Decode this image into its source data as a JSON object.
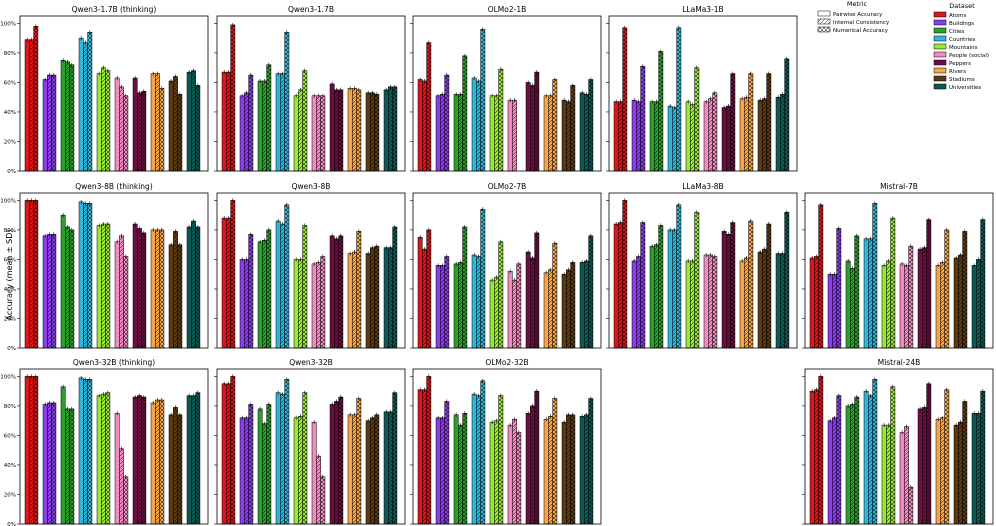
{
  "figure": {
    "ylabel": "Accuracy (mean ± SD)",
    "legend_metric_title": "Metric",
    "legend_dataset_title": "Dataset"
  },
  "colors": {
    "Atoms": "#d7191c",
    "Buildings": "#8a3ee6",
    "Cities": "#2ca02c",
    "Countries": "#33b5d8",
    "Mountains": "#9be63a",
    "People (social)": "#f08cc0",
    "Peppers": "#6a1040",
    "Rivers": "#f6a54a",
    "Stadiums": "#5a3a12",
    "Universities": "#0d5a55"
  },
  "chart_data": {
    "type": "bar",
    "metrics": [
      "Pairwise Accuracy",
      "Internal Consistency",
      "Numerical Accuracy"
    ],
    "categories": [
      "Atoms",
      "Buildings",
      "Cities",
      "Countries",
      "Mountains",
      "People (social)",
      "Peppers",
      "Rivers",
      "Stadiums",
      "Universities"
    ],
    "yticks": [
      "0%",
      "20%",
      "40%",
      "60%",
      "80%",
      "100%"
    ],
    "ylim": [
      0,
      1.05
    ],
    "panels": [
      {
        "title": "Qwen3-1.7B (thinking)",
        "values": [
          [
            0.89,
            0.89,
            0.98
          ],
          [
            0.62,
            0.65,
            0.65
          ],
          [
            0.75,
            0.74,
            0.72
          ],
          [
            0.9,
            0.87,
            0.94
          ],
          [
            0.66,
            0.7,
            0.68
          ],
          [
            0.63,
            0.57,
            0.51
          ],
          [
            0.63,
            0.53,
            0.54
          ],
          [
            0.66,
            0.66,
            0.56
          ],
          [
            0.61,
            0.64,
            0.52
          ],
          [
            0.67,
            0.68,
            0.58
          ]
        ]
      },
      {
        "title": "Qwen3-1.7B",
        "values": [
          [
            0.67,
            0.67,
            0.99
          ],
          [
            0.51,
            0.53,
            0.65
          ],
          [
            0.61,
            0.61,
            0.72
          ],
          [
            0.66,
            0.66,
            0.94
          ],
          [
            0.51,
            0.55,
            0.68
          ],
          [
            0.51,
            0.51,
            0.51
          ],
          [
            0.59,
            0.55,
            0.55
          ],
          [
            0.56,
            0.56,
            0.55
          ],
          [
            0.53,
            0.53,
            0.52
          ],
          [
            0.55,
            0.57,
            0.57
          ]
        ]
      },
      {
        "title": "OLMo2-1B",
        "values": [
          [
            0.62,
            0.61,
            0.87
          ],
          [
            0.51,
            0.52,
            0.65
          ],
          [
            0.52,
            0.52,
            0.78
          ],
          [
            0.63,
            0.61,
            0.96
          ],
          [
            0.51,
            0.51,
            0.69
          ],
          [
            0.48,
            0.48,
            0.0
          ],
          [
            0.6,
            0.58,
            0.67
          ],
          [
            0.51,
            0.51,
            0.62
          ],
          [
            0.48,
            0.47,
            0.58
          ],
          [
            0.53,
            0.52,
            0.62
          ]
        ]
      },
      {
        "title": "LLaMa3-1B",
        "values": [
          [
            0.47,
            0.47,
            0.97
          ],
          [
            0.48,
            0.47,
            0.71
          ],
          [
            0.47,
            0.47,
            0.81
          ],
          [
            0.44,
            0.43,
            0.97
          ],
          [
            0.47,
            0.45,
            0.7
          ],
          [
            0.47,
            0.49,
            0.53
          ],
          [
            0.43,
            0.44,
            0.66
          ],
          [
            0.49,
            0.5,
            0.66
          ],
          [
            0.48,
            0.49,
            0.66
          ],
          [
            0.5,
            0.52,
            0.76
          ]
        ]
      },
      null,
      {
        "title": "Qwen3-8B (thinking)",
        "values": [
          [
            1.0,
            1.0,
            1.0
          ],
          [
            0.76,
            0.77,
            0.77
          ],
          [
            0.9,
            0.82,
            0.8
          ],
          [
            0.99,
            0.98,
            0.98
          ],
          [
            0.83,
            0.84,
            0.84
          ],
          [
            0.72,
            0.76,
            0.62
          ],
          [
            0.84,
            0.81,
            0.78
          ],
          [
            0.8,
            0.8,
            0.8
          ],
          [
            0.7,
            0.79,
            0.7
          ],
          [
            0.82,
            0.86,
            0.82
          ]
        ]
      },
      {
        "title": "Qwen3-8B",
        "values": [
          [
            0.88,
            0.88,
            1.0
          ],
          [
            0.6,
            0.6,
            0.77
          ],
          [
            0.72,
            0.73,
            0.8
          ],
          [
            0.86,
            0.84,
            0.97
          ],
          [
            0.6,
            0.6,
            0.83
          ],
          [
            0.57,
            0.58,
            0.62
          ],
          [
            0.76,
            0.74,
            0.76
          ],
          [
            0.64,
            0.65,
            0.79
          ],
          [
            0.64,
            0.68,
            0.69
          ],
          [
            0.68,
            0.68,
            0.82
          ]
        ]
      },
      {
        "title": "OLMo2-7B",
        "values": [
          [
            0.75,
            0.67,
            0.8
          ],
          [
            0.56,
            0.56,
            0.62
          ],
          [
            0.57,
            0.58,
            0.82
          ],
          [
            0.63,
            0.62,
            0.94
          ],
          [
            0.46,
            0.48,
            0.72
          ],
          [
            0.52,
            0.46,
            0.57
          ],
          [
            0.65,
            0.61,
            0.78
          ],
          [
            0.51,
            0.53,
            0.71
          ],
          [
            0.5,
            0.53,
            0.58
          ],
          [
            0.58,
            0.59,
            0.76
          ]
        ]
      },
      {
        "title": "LLaMa3-8B",
        "values": [
          [
            0.84,
            0.85,
            1.0
          ],
          [
            0.59,
            0.62,
            0.85
          ],
          [
            0.69,
            0.7,
            0.83
          ],
          [
            0.8,
            0.8,
            0.97
          ],
          [
            0.59,
            0.59,
            0.92
          ],
          [
            0.63,
            0.63,
            0.62
          ],
          [
            0.79,
            0.77,
            0.85
          ],
          [
            0.59,
            0.61,
            0.86
          ],
          [
            0.65,
            0.67,
            0.84
          ],
          [
            0.64,
            0.64,
            0.92
          ]
        ]
      },
      {
        "title": "Mistral-7B",
        "values": [
          [
            0.61,
            0.62,
            0.97
          ],
          [
            0.5,
            0.5,
            0.81
          ],
          [
            0.59,
            0.54,
            0.76
          ],
          [
            0.74,
            0.74,
            0.98
          ],
          [
            0.56,
            0.59,
            0.88
          ],
          [
            0.57,
            0.56,
            0.69
          ],
          [
            0.67,
            0.68,
            0.87
          ],
          [
            0.56,
            0.58,
            0.8
          ],
          [
            0.61,
            0.63,
            0.79
          ],
          [
            0.56,
            0.6,
            0.87
          ]
        ]
      },
      {
        "title": "Qwen3-32B (thinking)",
        "values": [
          [
            1.0,
            1.0,
            1.0
          ],
          [
            0.81,
            0.82,
            0.82
          ],
          [
            0.93,
            0.78,
            0.78
          ],
          [
            0.99,
            0.98,
            0.98
          ],
          [
            0.87,
            0.88,
            0.89
          ],
          [
            0.75,
            0.51,
            0.32
          ],
          [
            0.86,
            0.87,
            0.86
          ],
          [
            0.82,
            0.84,
            0.84
          ],
          [
            0.74,
            0.79,
            0.74
          ],
          [
            0.87,
            0.87,
            0.89
          ]
        ]
      },
      {
        "title": "Qwen3-32B",
        "values": [
          [
            0.95,
            0.95,
            1.0
          ],
          [
            0.72,
            0.72,
            0.81
          ],
          [
            0.78,
            0.68,
            0.81
          ],
          [
            0.89,
            0.88,
            0.98
          ],
          [
            0.72,
            0.73,
            0.89
          ],
          [
            0.69,
            0.46,
            0.32
          ],
          [
            0.81,
            0.83,
            0.86
          ],
          [
            0.74,
            0.74,
            0.85
          ],
          [
            0.7,
            0.72,
            0.74
          ],
          [
            0.76,
            0.76,
            0.89
          ]
        ]
      },
      {
        "title": "OLMo2-32B",
        "values": [
          [
            0.91,
            0.91,
            1.0
          ],
          [
            0.72,
            0.72,
            0.83
          ],
          [
            0.74,
            0.67,
            0.75
          ],
          [
            0.88,
            0.87,
            0.97
          ],
          [
            0.69,
            0.7,
            0.87
          ],
          [
            0.67,
            0.71,
            0.62
          ],
          [
            0.75,
            0.8,
            0.9
          ],
          [
            0.71,
            0.73,
            0.85
          ],
          [
            0.69,
            0.74,
            0.74
          ],
          [
            0.73,
            0.74,
            0.85
          ]
        ]
      },
      null,
      {
        "title": "Mistral-24B",
        "values": [
          [
            0.9,
            0.91,
            1.0
          ],
          [
            0.7,
            0.72,
            0.87
          ],
          [
            0.8,
            0.81,
            0.86
          ],
          [
            0.9,
            0.87,
            0.98
          ],
          [
            0.67,
            0.67,
            0.93
          ],
          [
            0.62,
            0.66,
            0.25
          ],
          [
            0.78,
            0.79,
            0.95
          ],
          [
            0.71,
            0.72,
            0.91
          ],
          [
            0.67,
            0.69,
            0.83
          ],
          [
            0.75,
            0.75,
            0.9
          ]
        ]
      }
    ]
  }
}
